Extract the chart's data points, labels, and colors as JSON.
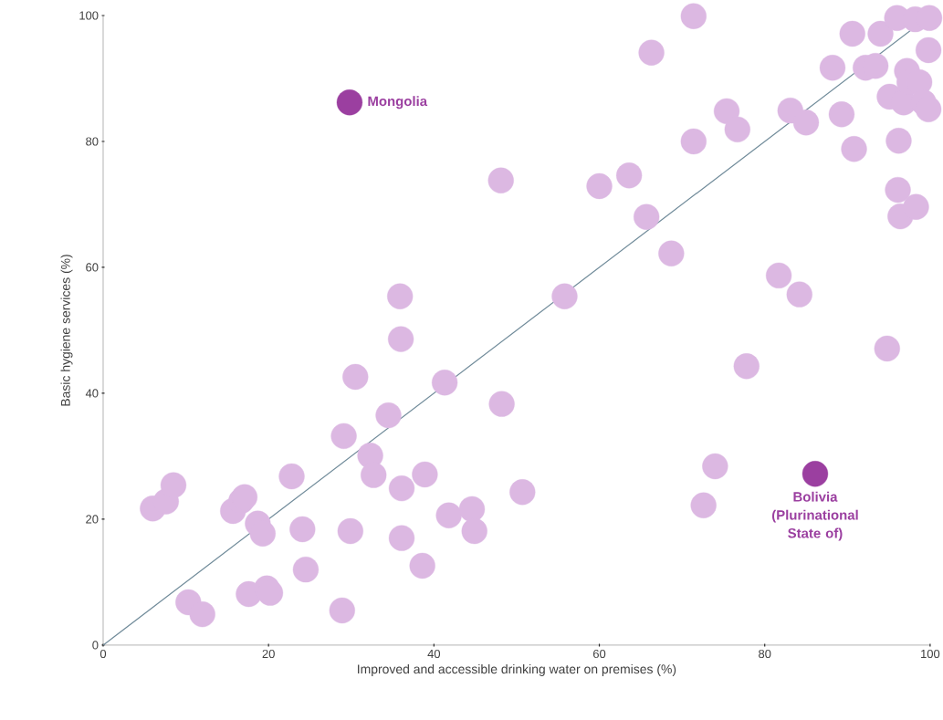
{
  "chart_data": {
    "type": "scatter",
    "xlabel": "Improved and accessible drinking water on premises (%)",
    "ylabel": "Basic hygiene services (%)",
    "xlim": [
      0,
      100
    ],
    "ylim": [
      0,
      100
    ],
    "xticks": [
      0,
      20,
      40,
      60,
      80,
      100
    ],
    "yticks": [
      0,
      20,
      40,
      60,
      80,
      100
    ],
    "grid": false,
    "marker": "circle",
    "series": [
      {
        "color": "#dcb8e2",
        "x": [
          6.0,
          7.6,
          8.5,
          10.3,
          12.0,
          15.7,
          16.7,
          17.1,
          17.6,
          18.7,
          19.3,
          19.8,
          20.2,
          22.8,
          24.1,
          24.5,
          28.9,
          29.1,
          29.9,
          30.5,
          32.3,
          32.7,
          34.5,
          35.9,
          36.1,
          36.0,
          36.1,
          38.6,
          38.9,
          41.3,
          41.8,
          44.6,
          44.9,
          48.1,
          48.2,
          50.7,
          55.8,
          60.0,
          63.6,
          65.7,
          66.3,
          68.7,
          71.4,
          71.4,
          72.6,
          74.0,
          75.4,
          76.7,
          77.8,
          81.7,
          83.1,
          84.2,
          85.0,
          88.2,
          89.3,
          90.6,
          90.8,
          92.2,
          93.4,
          94.0,
          94.8,
          95.1,
          96.0,
          96.1,
          96.2,
          96.4,
          96.8,
          97.2,
          97.5,
          98.2,
          98.3,
          98.7,
          99.2,
          99.8,
          99.9,
          99.8
        ],
        "values": [
          21.7,
          22.8,
          25.4,
          6.8,
          4.9,
          21.3,
          22.9,
          23.5,
          8.1,
          19.3,
          17.7,
          9.0,
          8.3,
          26.8,
          18.4,
          12.0,
          5.5,
          33.2,
          18.1,
          42.6,
          30.1,
          27.0,
          36.5,
          55.4,
          24.9,
          48.6,
          17.0,
          12.6,
          27.1,
          41.7,
          20.6,
          21.6,
          18.1,
          73.8,
          38.3,
          24.3,
          55.4,
          72.9,
          74.6,
          68.0,
          94.1,
          62.2,
          99.9,
          80.0,
          22.2,
          28.4,
          84.8,
          81.9,
          44.3,
          58.7,
          84.9,
          55.7,
          83.0,
          91.7,
          84.3,
          97.1,
          78.8,
          91.7,
          92.0,
          97.1,
          47.1,
          87.1,
          99.6,
          72.3,
          80.1,
          68.1,
          86.2,
          91.2,
          89.4,
          99.4,
          69.6,
          89.4,
          86.2,
          85.1,
          99.6,
          94.5
        ]
      },
      {
        "color": "#9b3fa0",
        "x": [
          29.8,
          86.1
        ],
        "values": [
          86.2,
          27.2
        ]
      },
      {
        "type": "line",
        "color": "#6f8a99",
        "x": [
          0,
          100
        ],
        "values": [
          0,
          100
        ]
      }
    ],
    "annotations": [
      {
        "text": "Mongolia",
        "x": 29.8,
        "y": 86.2
      },
      {
        "text": "Bolivia (Plurinational State of)",
        "x": 86.1,
        "y": 27.2
      }
    ]
  }
}
